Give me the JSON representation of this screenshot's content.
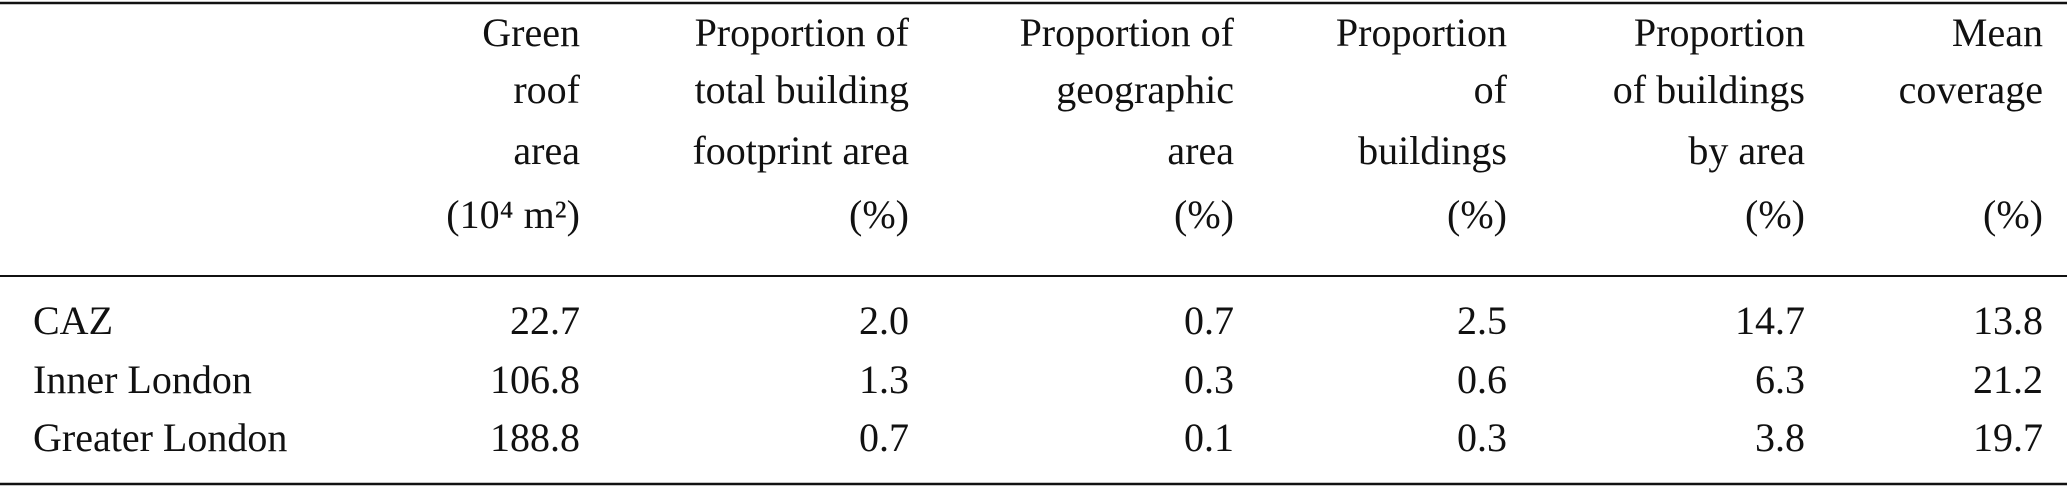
{
  "table": {
    "columns": [
      {
        "label": [
          "Green",
          "roof",
          "area"
        ],
        "unit": "(10⁴ m²)"
      },
      {
        "label": [
          "Proportion of",
          "total building",
          "footprint area"
        ],
        "unit": "(%)"
      },
      {
        "label": [
          "Proportion of",
          "geographic",
          "area"
        ],
        "unit": "(%)"
      },
      {
        "label": [
          "Proportion",
          "of",
          "buildings"
        ],
        "unit": "(%)"
      },
      {
        "label": [
          "Proportion",
          "of buildings",
          "by area"
        ],
        "unit": "(%)"
      },
      {
        "label": [
          "Mean",
          "coverage"
        ],
        "unit": "(%)"
      }
    ],
    "rows": [
      [
        "CAZ",
        "22.7",
        "2.0",
        "0.7",
        "2.5",
        "14.7",
        "13.8"
      ],
      [
        "Inner London",
        "106.8",
        "1.3",
        "0.3",
        "0.6",
        "6.3",
        "21.2"
      ],
      [
        "Greater London",
        "188.8",
        "0.7",
        "0.1",
        "0.3",
        "3.8",
        "19.7"
      ]
    ]
  }
}
